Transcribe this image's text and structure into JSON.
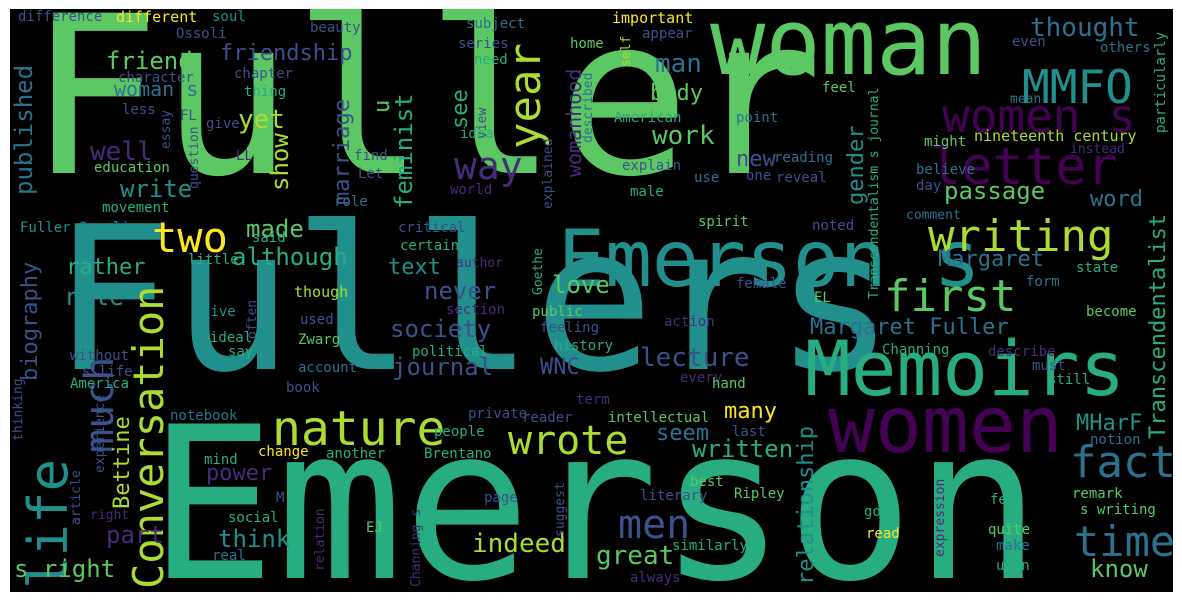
{
  "colors": {
    "background": "#000000",
    "palette": [
      "#440154",
      "#472c7a",
      "#3b518b",
      "#2c718e",
      "#21908d",
      "#27ad81",
      "#5cc863",
      "#aadc32",
      "#fde725"
    ]
  },
  "words": {
    "fuller": "Fuller",
    "fullers": "Fullers",
    "emerson": "Emerson",
    "woman": "woman",
    "emerson_s": "Emerson s",
    "memoirs": "Memoirs",
    "women": "women",
    "life": "life",
    "letter": "letter",
    "women_s": "women s",
    "mmfo": "MMFO",
    "nature": "nature",
    "conversation": "Conversation",
    "writing": "writing",
    "first": "first",
    "fact": "fact",
    "time": "time",
    "two": "two",
    "way": "way",
    "year": "year",
    "wrote": "wrote",
    "men": "men",
    "much": "much",
    "thought": "thought",
    "friend": "friend",
    "friendship": "friendship",
    "man": "man",
    "made": "made",
    "although": "although",
    "published": "published",
    "woman_s": "woman s",
    "yet": "yet",
    "well": "well",
    "write": "write",
    "show": "show",
    "marriage": "marriage",
    "feminist": "feminist",
    "see": "see",
    "u": "u",
    "womanhood": "womanhood",
    "body": "body",
    "work": "work",
    "gender": "gender",
    "new": "new",
    "passage": "passage",
    "word": "word",
    "transcendentalist": "Transcendentalist",
    "margaret": "Margaret",
    "margaret_fuller": "Margaret Fuller",
    "text": "text",
    "love": "love",
    "never": "never",
    "society": "society",
    "journal": "journal",
    "lecture": "lecture",
    "wnc": "WNC",
    "rather": "rather",
    "note": "note",
    "biography": "biography",
    "bettine": "Bettine",
    "part": "part",
    "s_right": "s right",
    "power": "power",
    "think": "think",
    "indeed": "indeed",
    "great": "great",
    "many": "many",
    "seem": "seem",
    "written": "written",
    "relationship": "relationship",
    "mharf": "MHarF",
    "know": "know",
    "difference": "difference",
    "different": "different",
    "soul": "soul",
    "beauty": "beauty",
    "subject": "subject",
    "important": "important",
    "ossoli": "Ossoli",
    "series": "series",
    "home": "home",
    "need": "need",
    "self": "self",
    "appear": "appear",
    "even": "even",
    "particularly": "particularly",
    "others": "others",
    "character": "character",
    "chapter": "chapter",
    "thing": "thing",
    "less": "less",
    "essay": "essay",
    "described": "described",
    "fl": "FL",
    "give": "give",
    "american": "American",
    "point": "point",
    "feel": "feel",
    "mean": "mean",
    "transcendentalism_s_journal": "Transcendentalism s journal",
    "nineteenth_century": "nineteenth century",
    "instead": "instead",
    "ll": "LL",
    "find": "find",
    "question": "question",
    "idea": "idea",
    "view": "view",
    "explained": "explained",
    "explain": "explain",
    "reading": "reading",
    "might": "might",
    "believe": "believe",
    "education": "education",
    "let": "Let",
    "world": "world",
    "use": "use",
    "one": "one",
    "reveal": "reveal",
    "day": "day",
    "movement": "movement",
    "role": "role",
    "male": "male",
    "comment": "comment",
    "fuller_ossoli": "Fuller Ossoli",
    "critical": "critical",
    "spirit": "spirit",
    "noted": "noted",
    "said": "said",
    "certain": "certain",
    "goethe": "Goethe",
    "little": "little",
    "author": "author",
    "female": "female",
    "state": "state",
    "though": "though",
    "form": "form",
    "live": "live",
    "often": "often",
    "section": "section",
    "public": "public",
    "used": "used",
    "action": "action",
    "el": "EL",
    "become": "become",
    "ideal": "ideal",
    "zwarg": "Zwarg",
    "feeling": "feeling",
    "say": "say",
    "political": "political",
    "history": "history",
    "channing": "Channing",
    "describe": "describe",
    "without": "without",
    "s_life": "s life",
    "account": "account",
    "america": "America",
    "every": "every",
    "hand": "hand",
    "must": "must",
    "still": "still",
    "book": "book",
    "term": "term",
    "thinking": "thinking",
    "notebook": "notebook",
    "private": "private",
    "reader": "reader",
    "intellectual": "intellectual",
    "last": "last",
    "notion": "notion",
    "experience": "experience",
    "people": "people",
    "mind": "mind",
    "another": "another",
    "brentano": "Brentano",
    "change": "change",
    "article": "article",
    "m": "M",
    "page": "page",
    "suggest": "suggest",
    "literary": "literary",
    "best": "best",
    "ripley": "Ripley",
    "remark": "remark",
    "s_writing": "s writing",
    "right": "right",
    "social": "social",
    "real": "real",
    "relation": "relation",
    "ej": "EJ",
    "channing_s": "Channing s",
    "similarly": "similarly",
    "always": "always",
    "good": "good",
    "read": "read",
    "expression": "expression",
    "felt": "felt",
    "quite": "quite",
    "make": "make",
    "upon": "upon"
  }
}
